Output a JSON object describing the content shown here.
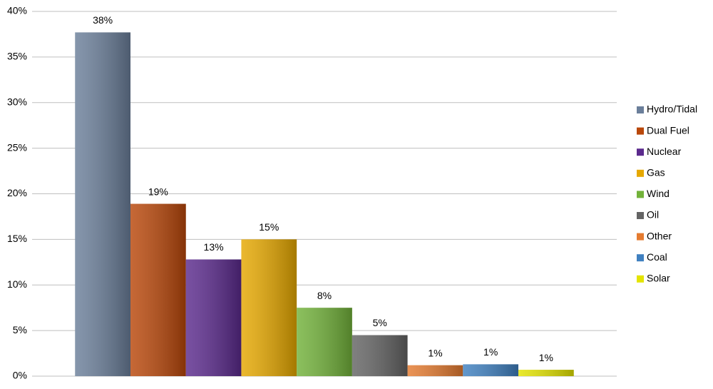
{
  "chart_data": {
    "type": "bar",
    "categories": [
      null
    ],
    "ylim": [
      0,
      40
    ],
    "yticks": [
      {
        "value": 0,
        "label": "0%"
      },
      {
        "value": 5,
        "label": "5%"
      },
      {
        "value": 10,
        "label": "10%"
      },
      {
        "value": 15,
        "label": "15%"
      },
      {
        "value": 20,
        "label": "20%"
      },
      {
        "value": 25,
        "label": "25%"
      },
      {
        "value": 30,
        "label": "30%"
      },
      {
        "value": 35,
        "label": "35%"
      },
      {
        "value": 40,
        "label": "40%"
      }
    ],
    "grid": true,
    "legend": "right",
    "series": [
      {
        "name": "Hydro/Tidal",
        "color": "#6b7f9a",
        "values": [
          37.7
        ],
        "value_labels": [
          "38%"
        ]
      },
      {
        "name": "Dual Fuel",
        "color": "#b9470a",
        "values": [
          18.9
        ],
        "value_labels": [
          "19%"
        ]
      },
      {
        "name": "Nuclear",
        "color": "#5b2a8d",
        "values": [
          12.8
        ],
        "value_labels": [
          "13%"
        ]
      },
      {
        "name": "Gas",
        "color": "#e6a800",
        "values": [
          15.0
        ],
        "value_labels": [
          "15%"
        ]
      },
      {
        "name": "Wind",
        "color": "#72b23a",
        "values": [
          7.5
        ],
        "value_labels": [
          "8%"
        ]
      },
      {
        "name": "Oil",
        "color": "#646464",
        "values": [
          4.5
        ],
        "value_labels": [
          "5%"
        ]
      },
      {
        "name": "Other",
        "color": "#e57b30",
        "values": [
          1.2
        ],
        "value_labels": [
          "1%"
        ]
      },
      {
        "name": "Coal",
        "color": "#3f80c0",
        "values": [
          1.3
        ],
        "value_labels": [
          "1%"
        ]
      },
      {
        "name": "Solar",
        "color": "#e4e400",
        "values": [
          0.7
        ],
        "value_labels": [
          "1%"
        ]
      }
    ]
  }
}
